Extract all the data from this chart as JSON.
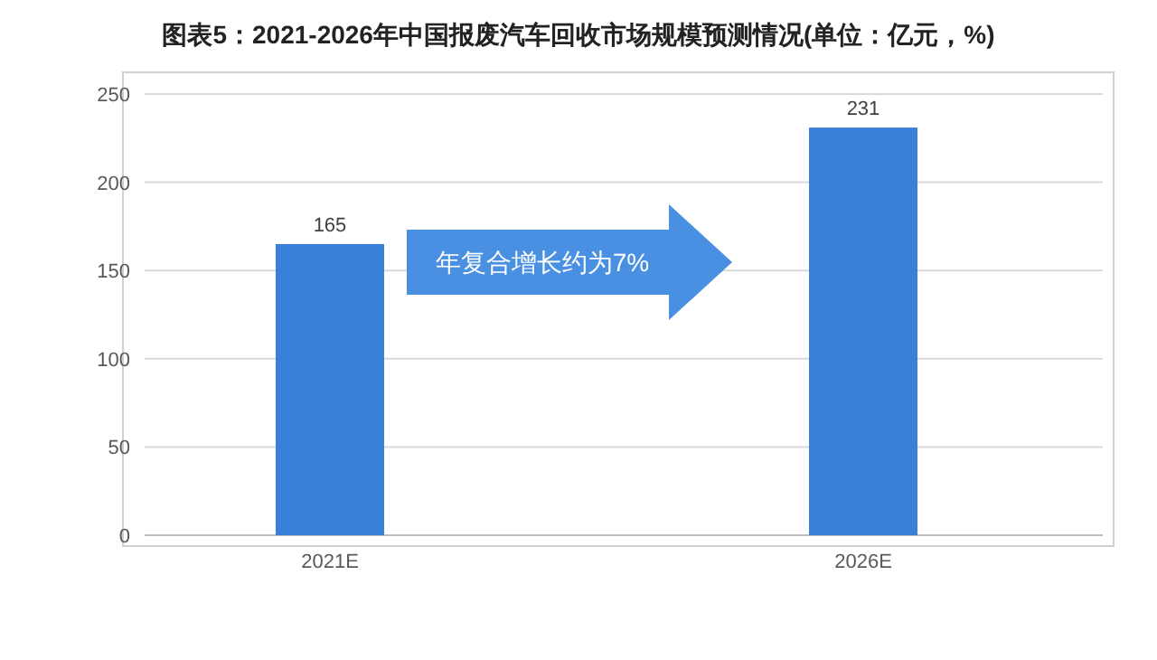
{
  "chart_data": {
    "type": "bar",
    "title": "图表5：2021-2026年中国报废汽车回收市场规模预测情况(单位：亿元，%)",
    "categories": [
      "2021E",
      "2026E"
    ],
    "values": [
      165,
      231
    ],
    "color": "#3a7fd9",
    "ylim": [
      0,
      250
    ],
    "yticks": [
      0,
      50,
      100,
      150,
      200,
      250
    ],
    "grid": "y",
    "data_labels": true,
    "annotations": [
      "年复合增长约为7%"
    ]
  }
}
